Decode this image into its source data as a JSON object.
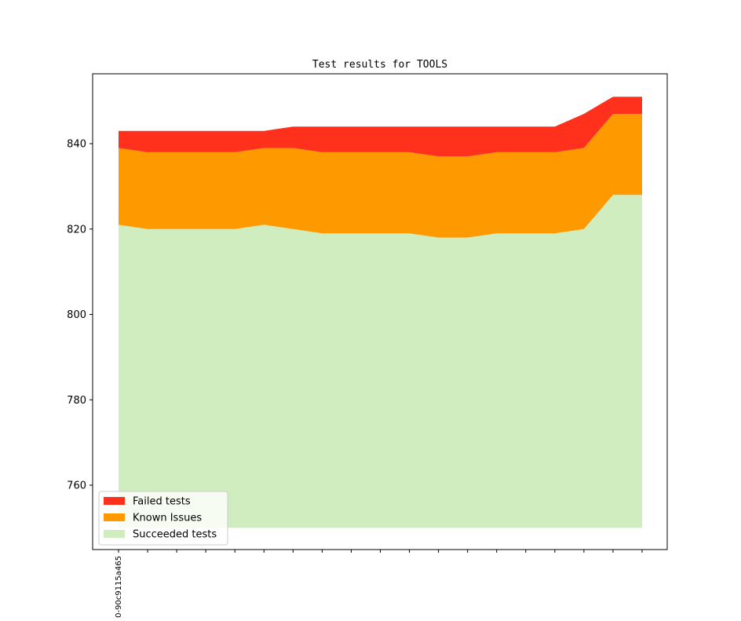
{
  "chart_data": {
    "type": "area",
    "stacked": true,
    "title": "Test results for TOOLS",
    "xlabel": "",
    "ylabel": "",
    "x_tick_labels": [
      "0-90c9115a465"
    ],
    "ylim": [
      745,
      855
    ],
    "yticks": [
      760,
      780,
      800,
      820,
      840
    ],
    "baseline": 750,
    "num_points": 19,
    "series": [
      {
        "name": "Succeeded tests",
        "color": "#cfedbf",
        "cumulative_top": [
          821,
          820,
          820,
          820,
          820,
          821,
          820,
          819,
          819,
          819,
          819,
          818,
          818,
          819,
          819,
          819,
          820,
          828,
          828
        ]
      },
      {
        "name": "Known Issues",
        "color": "#ff9900",
        "cumulative_top": [
          839,
          838,
          838,
          838,
          838,
          839,
          839,
          838,
          838,
          838,
          838,
          837,
          837,
          838,
          838,
          838,
          839,
          847,
          847
        ]
      },
      {
        "name": "Failed tests",
        "color": "#ff311d",
        "cumulative_top": [
          843,
          843,
          843,
          843,
          843,
          843,
          844,
          844,
          844,
          844,
          844,
          844,
          844,
          844,
          844,
          844,
          847,
          851,
          851
        ]
      }
    ],
    "legend": {
      "position": "lower-left",
      "order": [
        "Failed tests",
        "Known Issues",
        "Succeeded tests"
      ]
    },
    "grid": false
  }
}
